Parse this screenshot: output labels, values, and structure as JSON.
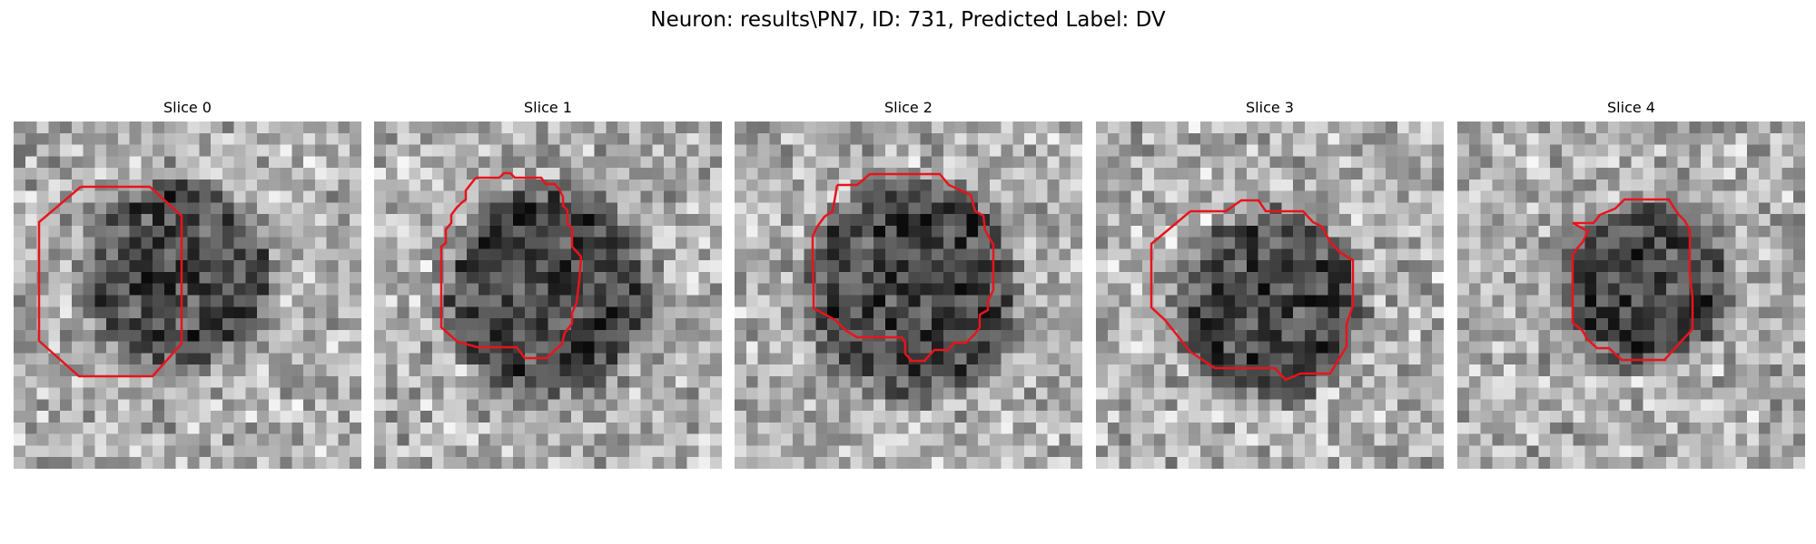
{
  "figure": {
    "suptitle": "Neuron: results\\PN7, ID: 731, Predicted Label: DV"
  },
  "panels": [
    {
      "title": "Slice 0",
      "seed": 11,
      "center": [
        0.47,
        0.44
      ],
      "radius": 0.27,
      "outline_color": "#e8141c"
    },
    {
      "title": "Slice 1",
      "seed": 23,
      "center": [
        0.5,
        0.49
      ],
      "radius": 0.3,
      "outline_color": "#e8141c"
    },
    {
      "title": "Slice 2",
      "seed": 37,
      "center": [
        0.51,
        0.48
      ],
      "radius": 0.31,
      "outline_color": "#e8141c"
    },
    {
      "title": "Slice 3",
      "seed": 41,
      "center": [
        0.5,
        0.53
      ],
      "radius": 0.27,
      "outline_color": "#e8141c"
    },
    {
      "title": "Slice 4",
      "seed": 53,
      "center": [
        0.54,
        0.47
      ],
      "radius": 0.24,
      "outline_color": "#e8141c"
    }
  ]
}
